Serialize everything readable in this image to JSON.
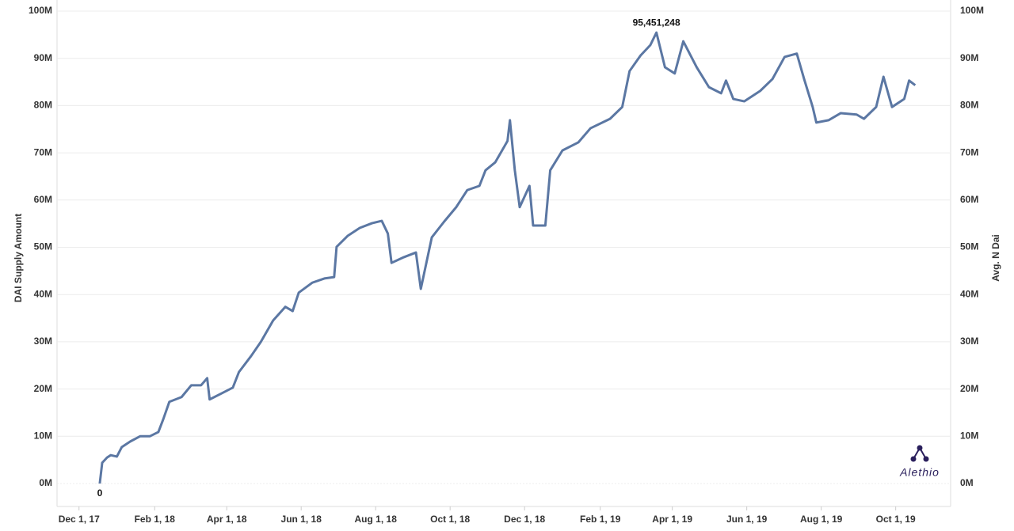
{
  "chart_data": {
    "type": "line",
    "y_label": "DAI Supply Amount",
    "y2_label": "Avg. N Dai",
    "watermark": "Alethio",
    "xlim": [
      "2017-11-13",
      "2019-11-15"
    ],
    "xticks": [
      {
        "value": "2017-12-01",
        "label": "Dec 1, 17"
      },
      {
        "value": "2018-02-01",
        "label": "Feb 1, 18"
      },
      {
        "value": "2018-04-01",
        "label": "Apr 1, 18"
      },
      {
        "value": "2018-06-01",
        "label": "Jun 1, 18"
      },
      {
        "value": "2018-08-01",
        "label": "Aug 1, 18"
      },
      {
        "value": "2018-10-01",
        "label": "Oct 1, 18"
      },
      {
        "value": "2018-12-01",
        "label": "Dec 1, 18"
      },
      {
        "value": "2019-02-01",
        "label": "Feb 1, 19"
      },
      {
        "value": "2019-04-01",
        "label": "Apr 1, 19"
      },
      {
        "value": "2019-06-01",
        "label": "Jun 1, 19"
      },
      {
        "value": "2019-08-01",
        "label": "Aug 1, 19"
      },
      {
        "value": "2019-10-01",
        "label": "Oct 1, 19"
      }
    ],
    "ylim": [
      0,
      100000000
    ],
    "yticks": [
      {
        "value": 0,
        "label": "0M"
      },
      {
        "value": 10000000,
        "label": "10M"
      },
      {
        "value": 20000000,
        "label": "20M"
      },
      {
        "value": 30000000,
        "label": "30M"
      },
      {
        "value": 40000000,
        "label": "40M"
      },
      {
        "value": 50000000,
        "label": "50M"
      },
      {
        "value": 60000000,
        "label": "60M"
      },
      {
        "value": 70000000,
        "label": "70M"
      },
      {
        "value": 80000000,
        "label": "80M"
      },
      {
        "value": 90000000,
        "label": "90M"
      },
      {
        "value": 100000000,
        "label": "100M"
      }
    ],
    "y2lim": [
      0,
      100000000
    ],
    "y2ticks": [
      {
        "value": 0,
        "label": "0M"
      },
      {
        "value": 10000000,
        "label": "10M"
      },
      {
        "value": 20000000,
        "label": "20M"
      },
      {
        "value": 30000000,
        "label": "30M"
      },
      {
        "value": 40000000,
        "label": "40M"
      },
      {
        "value": 50000000,
        "label": "50M"
      },
      {
        "value": 60000000,
        "label": "60M"
      },
      {
        "value": 70000000,
        "label": "70M"
      },
      {
        "value": 80000000,
        "label": "80M"
      },
      {
        "value": 90000000,
        "label": "90M"
      },
      {
        "value": 100000000,
        "label": "100M"
      }
    ],
    "grid": true,
    "x": [
      "2017-12-18",
      "2017-12-20",
      "2017-12-24",
      "2017-12-27",
      "2018-01-01",
      "2018-01-05",
      "2018-01-12",
      "2018-01-20",
      "2018-01-28",
      "2018-02-04",
      "2018-02-08",
      "2018-02-13",
      "2018-02-23",
      "2018-03-03",
      "2018-03-11",
      "2018-03-16",
      "2018-03-18",
      "2018-03-28",
      "2018-04-06",
      "2018-04-11",
      "2018-04-21",
      "2018-04-29",
      "2018-05-09",
      "2018-05-19",
      "2018-05-25",
      "2018-05-30",
      "2018-06-10",
      "2018-06-20",
      "2018-06-28",
      "2018-06-30",
      "2018-07-09",
      "2018-07-19",
      "2018-07-29",
      "2018-08-06",
      "2018-08-11",
      "2018-08-14",
      "2018-08-24",
      "2018-09-03",
      "2018-09-07",
      "2018-09-16",
      "2018-09-26",
      "2018-10-06",
      "2018-10-15",
      "2018-10-25",
      "2018-10-30",
      "2018-11-07",
      "2018-11-17",
      "2018-11-19",
      "2018-11-23",
      "2018-11-27",
      "2018-12-05",
      "2018-12-08",
      "2018-12-18",
      "2018-12-22",
      "2019-01-01",
      "2019-01-14",
      "2019-01-24",
      "2019-02-09",
      "2019-02-19",
      "2019-02-25",
      "2019-03-06",
      "2019-03-14",
      "2019-03-19",
      "2019-03-26",
      "2019-04-03",
      "2019-04-10",
      "2019-04-21",
      "2019-05-01",
      "2019-05-11",
      "2019-05-15",
      "2019-05-21",
      "2019-05-30",
      "2019-06-12",
      "2019-06-22",
      "2019-07-02",
      "2019-07-12",
      "2019-07-18",
      "2019-07-25",
      "2019-07-28",
      "2019-08-07",
      "2019-08-17",
      "2019-08-30",
      "2019-09-05",
      "2019-09-15",
      "2019-09-21",
      "2019-09-28",
      "2019-10-08",
      "2019-10-12",
      "2019-10-17"
    ],
    "series": [
      {
        "color": "#5b77a3",
        "values": [
          0,
          4400000,
          5500000,
          6000000,
          5700000,
          7700000,
          8900000,
          10000000,
          10000000,
          10900000,
          13600000,
          17300000,
          18300000,
          20800000,
          20800000,
          22300000,
          17800000,
          19100000,
          20300000,
          23600000,
          27000000,
          30000000,
          34500000,
          37400000,
          36500000,
          40400000,
          42500000,
          43400000,
          43700000,
          50100000,
          52400000,
          54100000,
          55100000,
          55600000,
          52900000,
          46700000,
          47900000,
          48900000,
          41200000,
          52100000,
          55400000,
          58500000,
          62100000,
          63000000,
          66300000,
          68000000,
          72500000,
          76900000,
          66300000,
          58500000,
          63000000,
          54600000,
          54600000,
          66300000,
          70500000,
          72200000,
          75200000,
          77200000,
          79700000,
          87300000,
          90600000,
          92800000,
          95451248,
          88100000,
          86800000,
          93600000,
          88100000,
          83900000,
          82600000,
          85300000,
          81400000,
          80900000,
          83100000,
          85600000,
          90300000,
          91000000,
          85600000,
          79700000,
          76400000,
          76900000,
          78400000,
          78100000,
          77200000,
          79700000,
          86100000,
          79700000,
          81400000,
          85300000,
          84300000
        ]
      }
    ],
    "annotations": [
      {
        "x": "2017-12-18",
        "value": 0,
        "label": "0"
      },
      {
        "x": "2019-03-19",
        "value": 95451248,
        "label": "95,451,248"
      }
    ]
  }
}
